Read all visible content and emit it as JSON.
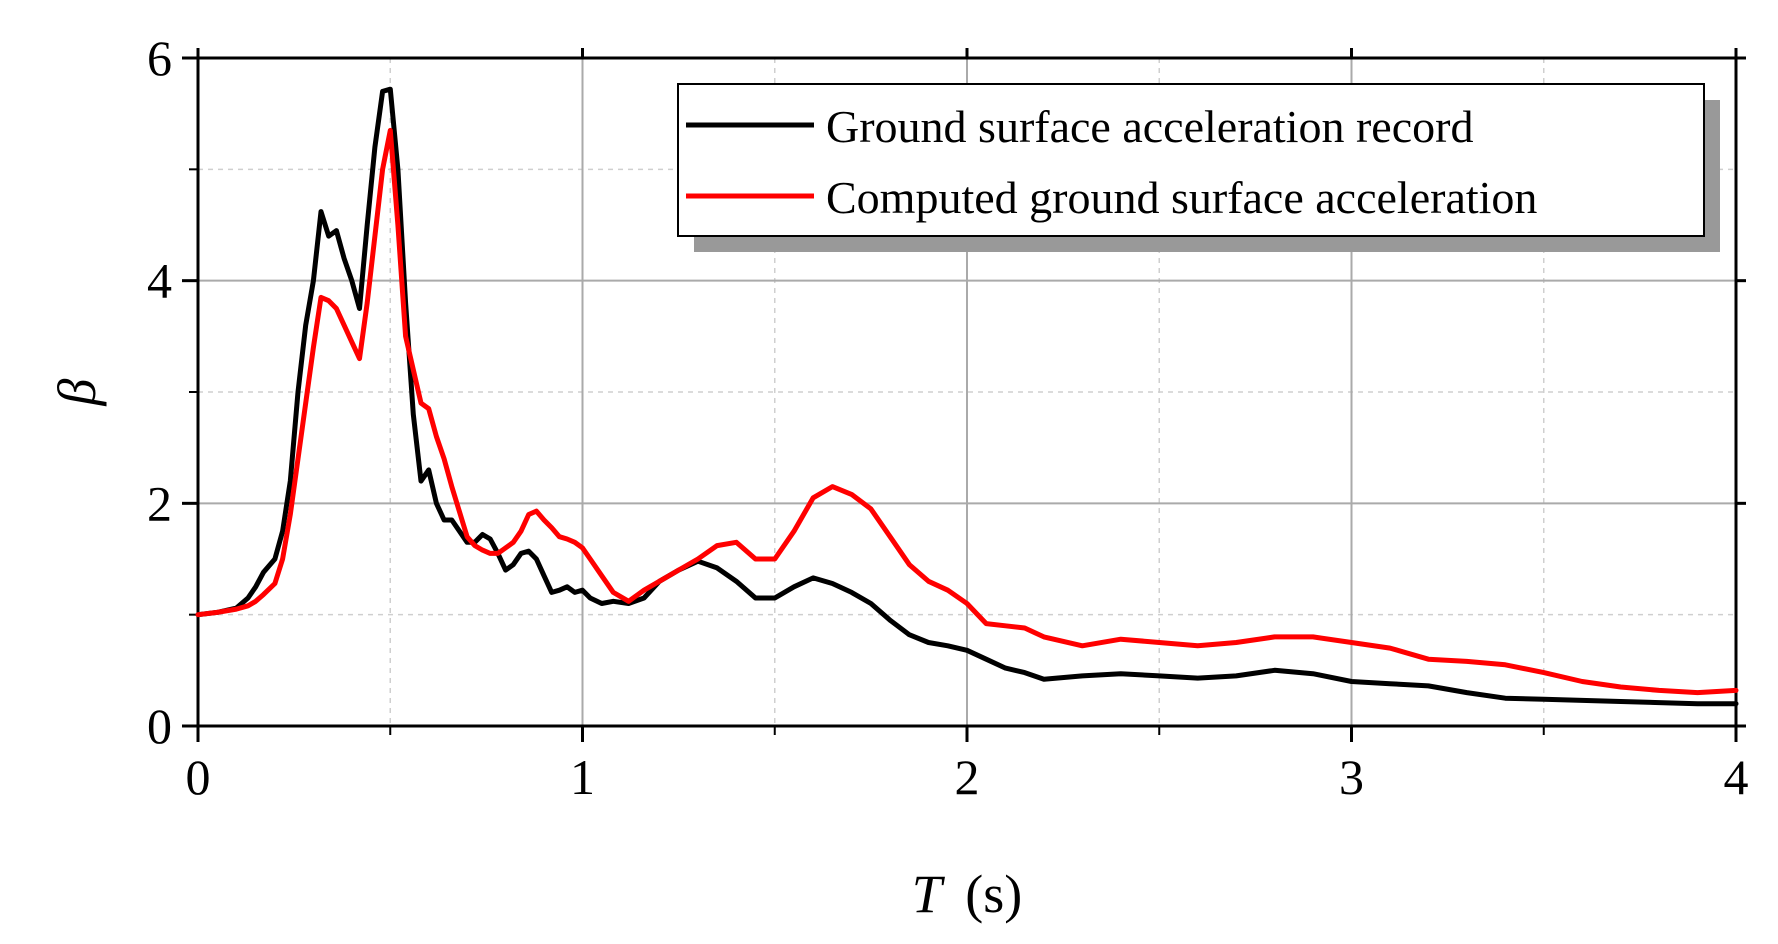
{
  "chart_data": {
    "type": "line",
    "title": "",
    "xlabel": "T",
    "xlabel_unit": "(s)",
    "ylabel": "β",
    "xlim": [
      0,
      4
    ],
    "ylim": [
      0,
      6
    ],
    "x_ticks": [
      0,
      1,
      2,
      3,
      4
    ],
    "x_tick_labels": [
      "0",
      "1",
      "2",
      "3",
      "4"
    ],
    "y_ticks": [
      0,
      2,
      4,
      6
    ],
    "y_tick_labels": [
      "0",
      "2",
      "4",
      "6"
    ],
    "grid": true,
    "legend_position": "top-right",
    "series": [
      {
        "name": "Ground surface acceleration record",
        "color": "#000000",
        "x": [
          0,
          0.05,
          0.1,
          0.13,
          0.15,
          0.17,
          0.2,
          0.22,
          0.24,
          0.26,
          0.28,
          0.3,
          0.32,
          0.34,
          0.36,
          0.38,
          0.4,
          0.42,
          0.44,
          0.46,
          0.48,
          0.5,
          0.52,
          0.54,
          0.56,
          0.58,
          0.6,
          0.62,
          0.64,
          0.66,
          0.7,
          0.72,
          0.74,
          0.76,
          0.78,
          0.8,
          0.82,
          0.84,
          0.86,
          0.88,
          0.9,
          0.92,
          0.94,
          0.96,
          0.98,
          1.0,
          1.02,
          1.05,
          1.08,
          1.12,
          1.16,
          1.2,
          1.25,
          1.3,
          1.35,
          1.4,
          1.45,
          1.5,
          1.55,
          1.6,
          1.65,
          1.7,
          1.75,
          1.8,
          1.85,
          1.9,
          1.95,
          2.0,
          2.05,
          2.1,
          2.15,
          2.2,
          2.3,
          2.4,
          2.5,
          2.6,
          2.7,
          2.8,
          2.9,
          3.0,
          3.1,
          3.2,
          3.3,
          3.4,
          3.5,
          3.6,
          3.7,
          3.8,
          3.9,
          4.0
        ],
        "values": [
          1.0,
          1.02,
          1.06,
          1.15,
          1.25,
          1.38,
          1.5,
          1.75,
          2.2,
          3.0,
          3.6,
          4.0,
          4.62,
          4.4,
          4.45,
          4.2,
          4.0,
          3.75,
          4.5,
          5.2,
          5.7,
          5.72,
          5.0,
          3.8,
          2.8,
          2.2,
          2.3,
          2.0,
          1.85,
          1.85,
          1.65,
          1.65,
          1.72,
          1.68,
          1.55,
          1.4,
          1.45,
          1.55,
          1.57,
          1.5,
          1.35,
          1.2,
          1.22,
          1.25,
          1.2,
          1.22,
          1.15,
          1.1,
          1.12,
          1.1,
          1.15,
          1.3,
          1.4,
          1.48,
          1.42,
          1.3,
          1.15,
          1.15,
          1.25,
          1.33,
          1.28,
          1.2,
          1.1,
          0.95,
          0.82,
          0.75,
          0.72,
          0.68,
          0.6,
          0.52,
          0.48,
          0.42,
          0.45,
          0.47,
          0.45,
          0.43,
          0.45,
          0.5,
          0.47,
          0.4,
          0.38,
          0.36,
          0.3,
          0.25,
          0.24,
          0.23,
          0.22,
          0.21,
          0.2,
          0.2
        ]
      },
      {
        "name": "Computed ground surface acceleration",
        "color": "#ff0000",
        "x": [
          0,
          0.05,
          0.1,
          0.13,
          0.15,
          0.17,
          0.2,
          0.22,
          0.24,
          0.26,
          0.28,
          0.3,
          0.32,
          0.34,
          0.36,
          0.38,
          0.4,
          0.42,
          0.44,
          0.46,
          0.48,
          0.5,
          0.52,
          0.54,
          0.56,
          0.58,
          0.6,
          0.62,
          0.64,
          0.66,
          0.7,
          0.72,
          0.74,
          0.76,
          0.78,
          0.8,
          0.82,
          0.84,
          0.86,
          0.88,
          0.9,
          0.92,
          0.94,
          0.96,
          0.98,
          1.0,
          1.02,
          1.05,
          1.08,
          1.12,
          1.16,
          1.2,
          1.25,
          1.3,
          1.35,
          1.4,
          1.45,
          1.5,
          1.55,
          1.6,
          1.65,
          1.7,
          1.75,
          1.8,
          1.85,
          1.9,
          1.95,
          2.0,
          2.05,
          2.1,
          2.15,
          2.2,
          2.3,
          2.4,
          2.5,
          2.6,
          2.7,
          2.8,
          2.9,
          3.0,
          3.1,
          3.2,
          3.3,
          3.4,
          3.5,
          3.6,
          3.7,
          3.8,
          3.9,
          4.0
        ],
        "values": [
          1.0,
          1.02,
          1.05,
          1.08,
          1.12,
          1.18,
          1.28,
          1.5,
          1.9,
          2.4,
          2.9,
          3.4,
          3.85,
          3.82,
          3.75,
          3.6,
          3.45,
          3.3,
          3.8,
          4.4,
          5.0,
          5.35,
          4.5,
          3.5,
          3.2,
          2.9,
          2.85,
          2.6,
          2.4,
          2.15,
          1.7,
          1.62,
          1.58,
          1.55,
          1.55,
          1.6,
          1.65,
          1.75,
          1.9,
          1.93,
          1.85,
          1.78,
          1.7,
          1.68,
          1.65,
          1.6,
          1.5,
          1.35,
          1.2,
          1.12,
          1.22,
          1.3,
          1.4,
          1.5,
          1.62,
          1.65,
          1.5,
          1.5,
          1.75,
          2.05,
          2.15,
          2.08,
          1.95,
          1.7,
          1.45,
          1.3,
          1.22,
          1.1,
          0.92,
          0.9,
          0.88,
          0.8,
          0.72,
          0.78,
          0.75,
          0.72,
          0.75,
          0.8,
          0.8,
          0.75,
          0.7,
          0.6,
          0.58,
          0.55,
          0.48,
          0.4,
          0.35,
          0.32,
          0.3,
          0.32
        ]
      }
    ]
  }
}
